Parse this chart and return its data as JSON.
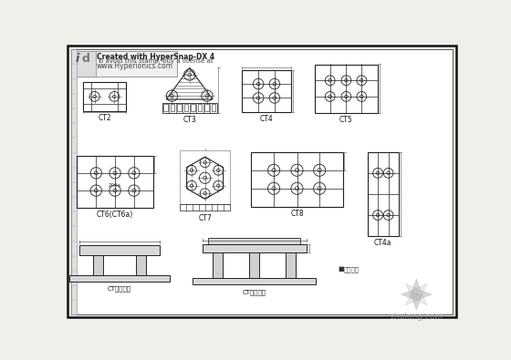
{
  "bg_color": "#f0f0eb",
  "inner_bg": "#ffffff",
  "border_color": "#111111",
  "line_color": "#222222",
  "dim_color": "#444444",
  "text_color": "#111111",
  "watermark_color": "#bbbbbb",
  "stamp_text1": "Created with HyperSnap-DX 4",
  "stamp_text2": "To avoid this stamp, buy a license at",
  "stamp_text3": "www.Hyperionics.com",
  "label_CT2": "CT2",
  "label_CT3": "CT3",
  "label_CT4": "CT4",
  "label_CT5": "CT5",
  "label_CT6": "CT6(CT6a)",
  "label_CT7": "CT7",
  "label_CT8": "CT8",
  "label_CT4a": "CT4a",
  "label_CTn1": "CT案例说明",
  "label_CTn2": "CT案例说明",
  "zhulong_text": "zhulong.com",
  "note_text": "注意事项"
}
